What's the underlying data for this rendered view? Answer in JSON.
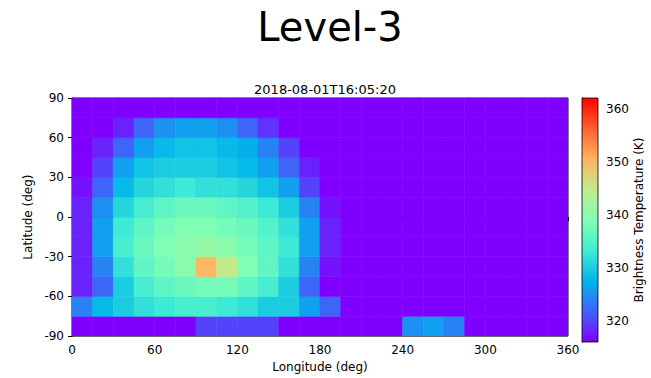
{
  "chart_data": {
    "type": "heatmap",
    "title": "Level-3",
    "subtitle": "2018-08-01T16:05:20",
    "x_label": "Longitude (deg)",
    "y_label": "Latitude (deg)",
    "xlim": [
      0,
      360
    ],
    "xticks": [
      0,
      60,
      120,
      180,
      240,
      300,
      360
    ],
    "ylim": [
      -90,
      90
    ],
    "yticks": [
      -90,
      -60,
      -30,
      0,
      30,
      60,
      90
    ],
    "grid": false,
    "x": [
      7.5,
      22.5,
      37.5,
      52.5,
      67.5,
      82.5,
      97.5,
      112.5,
      127.5,
      142.5,
      157.5,
      172.5,
      187.5,
      202.5,
      217.5,
      232.5,
      247.5,
      262.5,
      277.5,
      292.5,
      307.5,
      322.5,
      337.5,
      352.5
    ],
    "y": [
      -82.5,
      -67.5,
      -52.5,
      -37.5,
      -22.5,
      -7.5,
      7.5,
      22.5,
      37.5,
      52.5,
      67.5,
      82.5
    ],
    "values": [
      [
        316,
        316,
        316,
        316,
        316,
        316,
        320,
        320,
        320,
        320,
        316,
        316,
        316,
        316,
        316,
        316,
        325,
        326,
        324,
        316,
        316,
        316,
        316,
        316
      ],
      [
        324,
        328,
        330,
        332,
        333,
        334,
        334,
        333,
        332,
        330,
        330,
        326,
        322,
        316,
        316,
        316,
        316,
        316,
        316,
        316,
        316,
        316,
        316,
        316
      ],
      [
        318,
        322,
        330,
        334,
        336,
        337,
        338,
        338,
        336,
        334,
        330,
        322,
        316,
        316,
        316,
        316,
        316,
        316,
        316,
        316,
        316,
        316,
        316,
        316
      ],
      [
        318,
        324,
        332,
        336,
        338,
        340,
        350,
        345,
        339,
        336,
        332,
        324,
        317,
        316,
        316,
        316,
        316,
        316,
        316,
        316,
        316,
        316,
        316,
        316
      ],
      [
        318,
        326,
        334,
        337,
        339,
        340,
        341,
        340,
        338,
        336,
        333,
        326,
        318,
        316,
        316,
        316,
        316,
        316,
        316,
        316,
        316,
        316,
        316,
        316
      ],
      [
        318,
        326,
        333,
        336,
        338,
        339,
        339,
        338,
        337,
        335,
        332,
        326,
        318,
        316,
        316,
        316,
        316,
        316,
        316,
        316,
        316,
        316,
        316,
        316
      ],
      [
        318,
        325,
        331,
        334,
        336,
        337,
        337,
        336,
        335,
        333,
        330,
        324,
        317,
        316,
        316,
        316,
        316,
        316,
        316,
        316,
        316,
        316,
        316,
        316
      ],
      [
        317,
        322,
        328,
        331,
        332,
        333,
        332,
        332,
        331,
        329,
        326,
        320,
        316,
        316,
        316,
        316,
        316,
        316,
        316,
        316,
        316,
        316,
        316,
        316
      ],
      [
        316,
        320,
        326,
        329,
        330,
        330,
        330,
        329,
        328,
        326,
        322,
        318,
        316,
        316,
        316,
        316,
        316,
        316,
        316,
        316,
        316,
        316,
        316,
        316
      ],
      [
        316,
        318,
        322,
        326,
        328,
        329,
        329,
        328,
        327,
        324,
        320,
        316,
        316,
        316,
        316,
        316,
        316,
        316,
        316,
        316,
        316,
        316,
        316,
        316
      ],
      [
        316,
        316,
        318,
        322,
        325,
        326,
        326,
        325,
        322,
        319,
        316,
        316,
        316,
        316,
        316,
        316,
        316,
        316,
        316,
        316,
        316,
        316,
        316,
        316
      ],
      [
        316,
        316,
        316,
        316,
        316,
        316,
        316,
        316,
        316,
        316,
        316,
        316,
        316,
        316,
        316,
        316,
        316,
        316,
        316,
        316,
        316,
        316,
        316,
        316
      ]
    ],
    "colorbar": {
      "label": "Brightness Temperature (K)",
      "lim": [
        316,
        362
      ],
      "ticks": [
        320,
        330,
        340,
        350,
        360
      ]
    }
  }
}
